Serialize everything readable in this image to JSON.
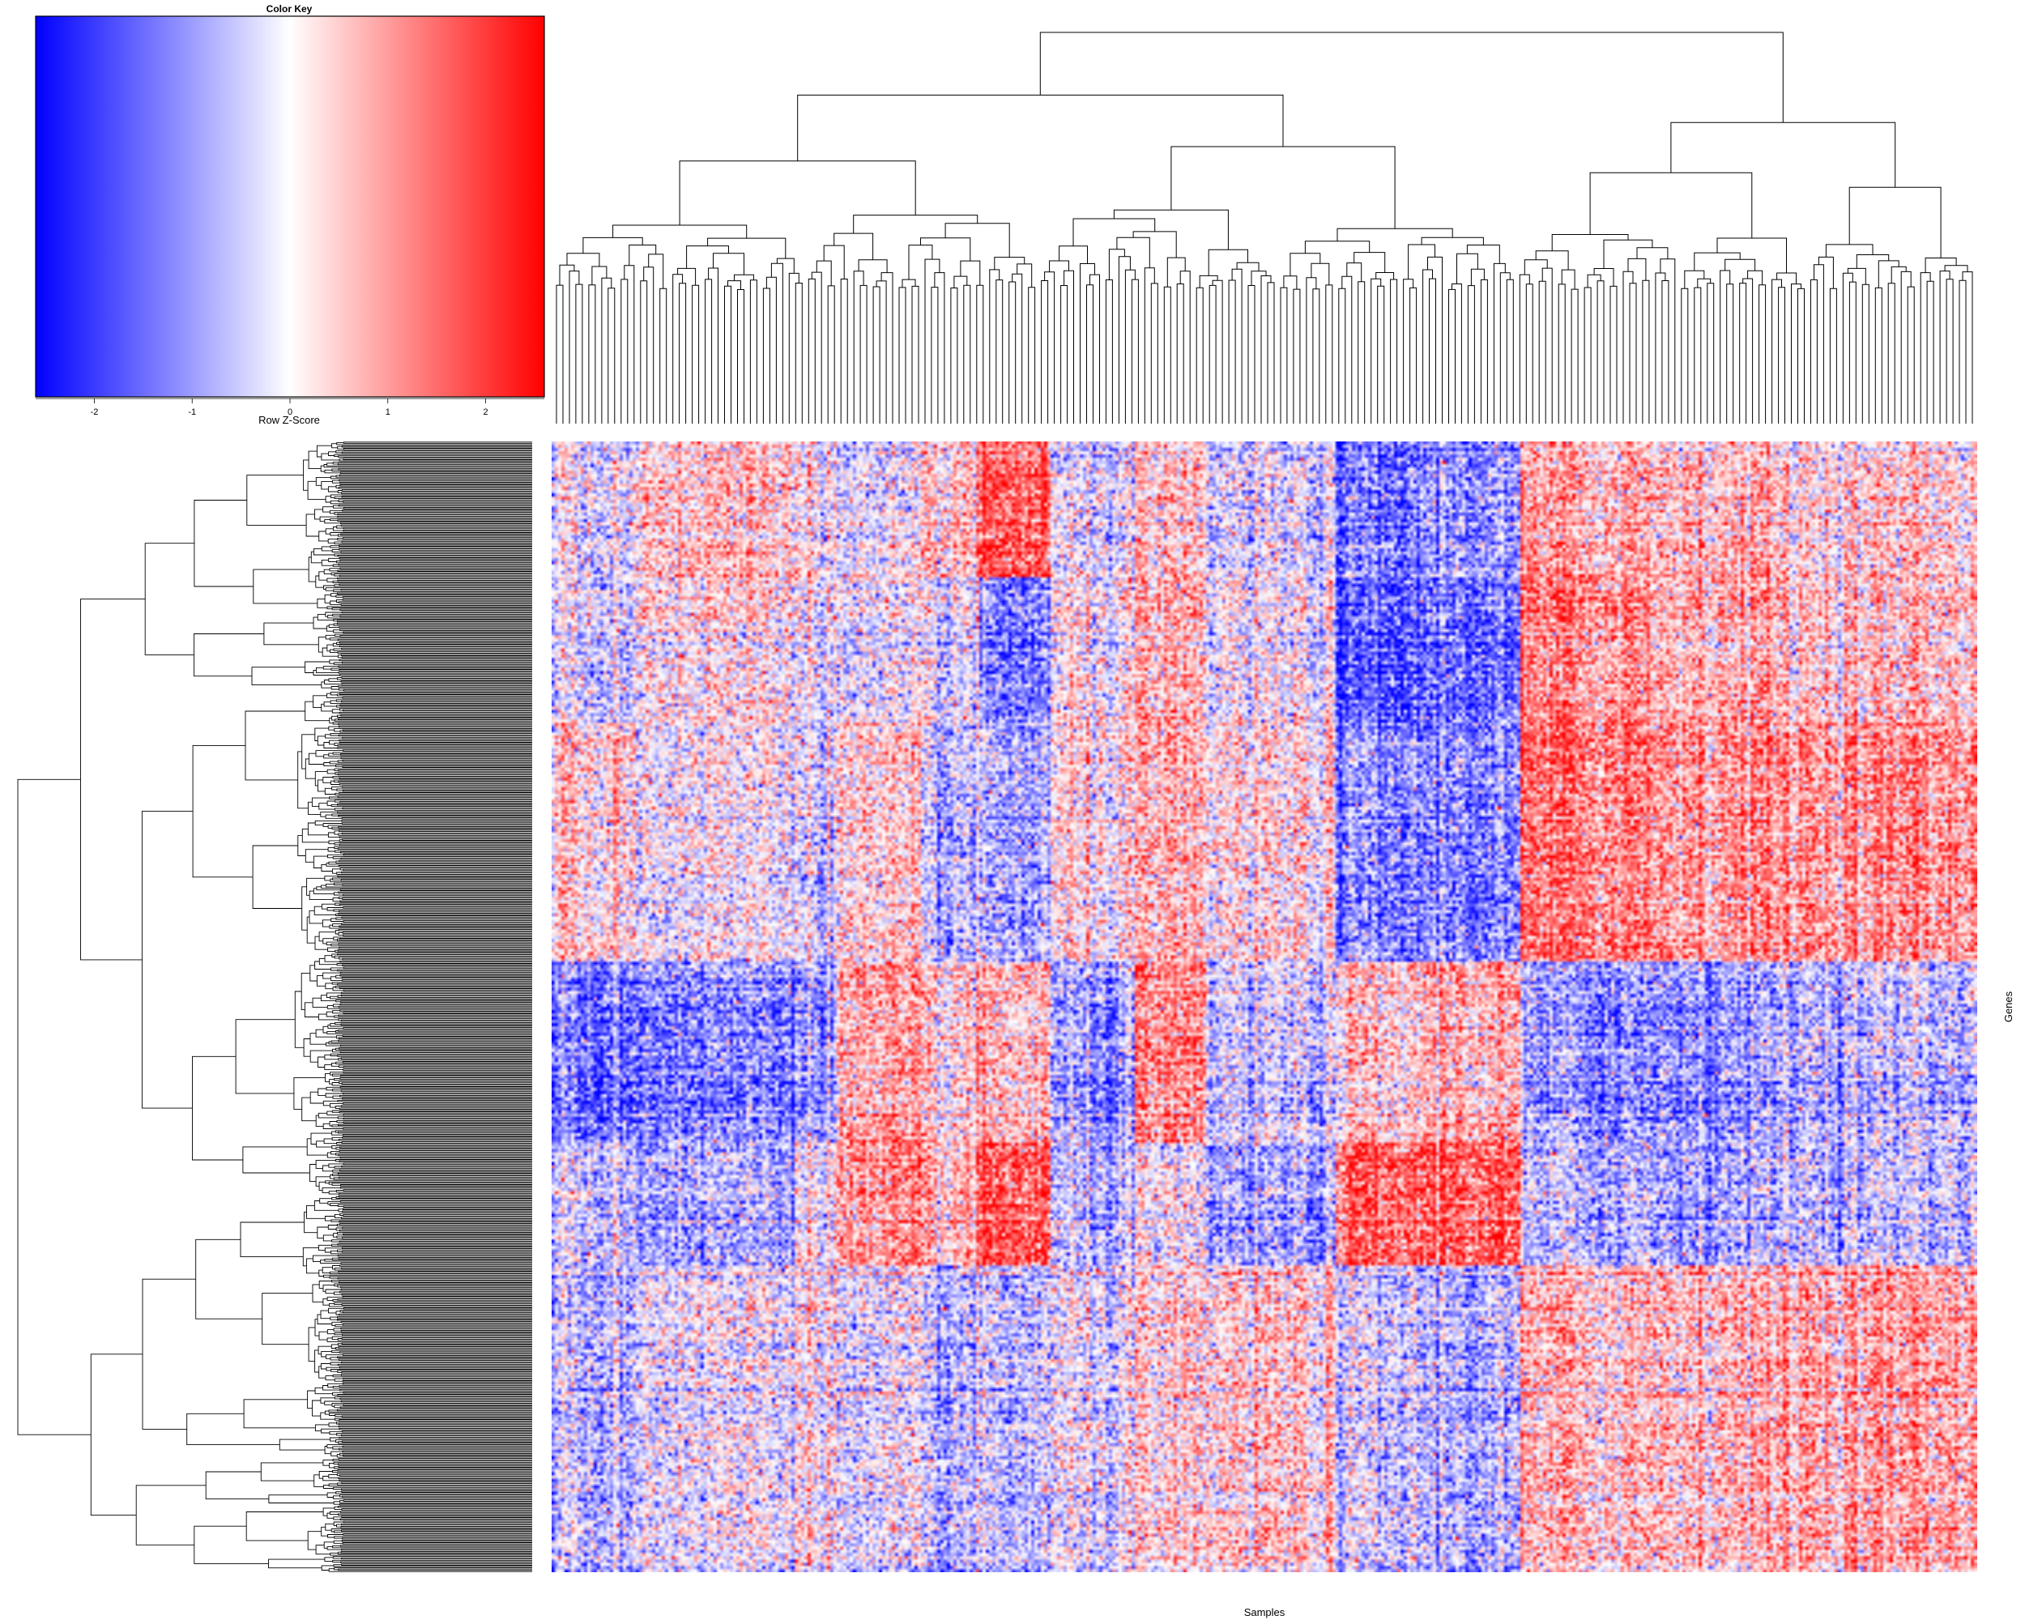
{
  "chart_data": {
    "type": "heatmap",
    "subtype": "clustered heatmap with row and column dendrograms",
    "xlabel": "Samples",
    "ylabel": "Genes",
    "color_key": {
      "title": "Color Key",
      "label": "Row Z-Score",
      "range": [
        -2.6,
        2.6
      ],
      "ticks": [
        -2,
        -1,
        0,
        1,
        2
      ],
      "tick_labels": [
        "-2",
        "-1",
        "0",
        "1",
        "2"
      ],
      "colors": {
        "low": "#0000ff",
        "mid": "#ffffff",
        "high": "#ff0000"
      }
    },
    "column_groups": [
      {
        "span": [
          0.0,
          0.06
        ],
        "trend": "mixed"
      },
      {
        "span": [
          0.06,
          0.17
        ],
        "trend": "mixed"
      },
      {
        "span": [
          0.17,
          0.2
        ],
        "trend": "mixed"
      },
      {
        "span": [
          0.2,
          0.26
        ],
        "trend": "mixed"
      },
      {
        "span": [
          0.26,
          0.3
        ],
        "trend": "mixed"
      },
      {
        "span": [
          0.3,
          0.35
        ],
        "trend": "mixed"
      },
      {
        "span": [
          0.35,
          0.41
        ],
        "trend": "mixed"
      },
      {
        "span": [
          0.41,
          0.46
        ],
        "trend": "mixed"
      },
      {
        "span": [
          0.46,
          0.55
        ],
        "trend": "mixed"
      },
      {
        "span": [
          0.55,
          0.61
        ],
        "trend": "mixed"
      },
      {
        "span": [
          0.61,
          0.68
        ],
        "trend": "mixed"
      },
      {
        "span": [
          0.68,
          0.77
        ],
        "trend": "mixed"
      },
      {
        "span": [
          0.77,
          0.86
        ],
        "trend": "mixed"
      },
      {
        "span": [
          0.86,
          1.0
        ],
        "trend": "mixed"
      }
    ],
    "row_groups": [
      {
        "span": [
          0.0,
          0.12
        ]
      },
      {
        "span": [
          0.12,
          0.25
        ]
      },
      {
        "span": [
          0.25,
          0.46
        ]
      },
      {
        "span": [
          0.46,
          0.62
        ]
      },
      {
        "span": [
          0.62,
          0.73
        ]
      },
      {
        "span": [
          0.73,
          1.0
        ]
      }
    ],
    "block_means": [
      [
        -0.2,
        0.6,
        0.2,
        -0.4,
        0.5,
        1.6,
        -0.3,
        0.3,
        -0.4,
        -1.5,
        -1.0,
        0.8,
        0.7,
        0.4
      ],
      [
        -0.3,
        0.3,
        0.1,
        -0.3,
        -0.2,
        -1.3,
        0.1,
        0.6,
        -0.1,
        -1.8,
        -1.4,
        1.2,
        0.9,
        0.6
      ],
      [
        0.4,
        0.0,
        -0.2,
        0.2,
        -0.7,
        -0.9,
        0.2,
        0.5,
        0.2,
        -1.3,
        -1.2,
        1.3,
        1.1,
        1.1
      ],
      [
        -1.4,
        -1.2,
        -0.8,
        0.7,
        0.4,
        0.6,
        -1.0,
        1.0,
        -0.5,
        0.4,
        0.8,
        -1.1,
        -1.0,
        -0.6
      ],
      [
        -0.5,
        -0.8,
        0.2,
        0.9,
        0.7,
        1.7,
        -0.7,
        -0.2,
        -1.0,
        1.5,
        1.7,
        -0.7,
        -0.8,
        -0.6
      ],
      [
        -0.6,
        -0.1,
        0.3,
        -0.4,
        -0.7,
        -0.6,
        -0.2,
        0.2,
        0.4,
        -0.5,
        -0.7,
        0.6,
        0.7,
        0.9
      ]
    ]
  }
}
